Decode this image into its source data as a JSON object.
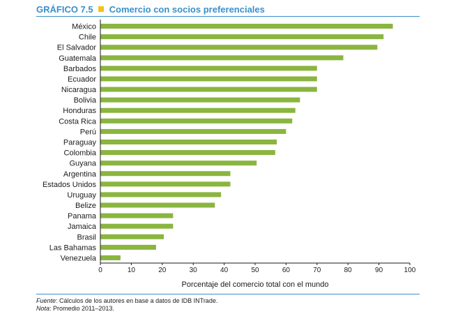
{
  "figure": {
    "label": "GRÁFICO 7.5",
    "title": "Comercio con socios preferenciales",
    "accent_color": "#3a8fc9",
    "square_color": "#f2c21a"
  },
  "chart_data": {
    "type": "bar",
    "orientation": "horizontal",
    "categories": [
      "México",
      "Chile",
      "El Salvador",
      "Guatemala",
      "Barbados",
      "Ecuador",
      "Nicaragua",
      "Bolivia",
      "Honduras",
      "Costa Rica",
      "Perú",
      "Paraguay",
      "Colombia",
      "Guyana",
      "Argentina",
      "Estados Unidos",
      "Uruguay",
      "Belize",
      "Panama",
      "Jamaica",
      "Brasil",
      "Las Bahamas",
      "Venezuela"
    ],
    "values": [
      94.5,
      91.5,
      89.5,
      78.5,
      70,
      70,
      70,
      64.5,
      63,
      62,
      60,
      57,
      56.5,
      50.5,
      42,
      42,
      39,
      37,
      23.5,
      23.5,
      20.5,
      18,
      6.5
    ],
    "xlabel": "Porcentaje del comercio total con el mundo",
    "xlim": [
      0,
      100
    ],
    "xticks": [
      0,
      10,
      20,
      30,
      40,
      50,
      60,
      70,
      80,
      90,
      100
    ],
    "bar_color": "#8ab53f",
    "grid": false,
    "legend": "none"
  },
  "footnotes": {
    "source_label": "Fuente",
    "source_text": ": Cálculos de los autores en base a datos de IDB INTrade.",
    "note_label": "Nota",
    "note_text": ": Promedio 2011–2013."
  }
}
